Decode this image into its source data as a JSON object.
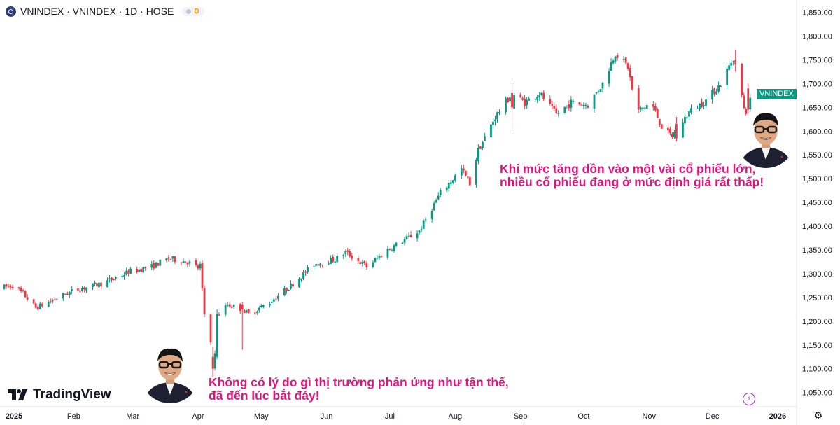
{
  "header": {
    "symbol_title": "VNINDEX · VNINDEX · 1D · HOSE",
    "badge": "D"
  },
  "price_tag": "VNINDEX",
  "brand": "TradingView",
  "annotations": {
    "bottom_lines": [
      "Không có lý do gì thị trường phản ứng như tận thế,",
      "đã đến lúc bắt đáy!"
    ],
    "top_lines": [
      "Khi mức tăng dồn vào một vài cổ phiếu lớn,",
      "nhiều cổ phiếu đang ở mức định giá rất thấp!"
    ]
  },
  "colors": {
    "up": "#089981",
    "down": "#f23645",
    "annotation": "#e0147c",
    "price_tag": "#089981"
  },
  "icons": {
    "flash": "lightning-icon",
    "settings": "gear-icon"
  },
  "chart_data": {
    "type": "candlestick",
    "y_ticks": [
      "1,850.00",
      "1,800.00",
      "1,750.00",
      "1,700.00",
      "1,650.00",
      "1,600.00",
      "1,550.00",
      "1,500.00",
      "1,450.00",
      "1,400.00",
      "1,350.00",
      "1,300.00",
      "1,250.00",
      "1,200.00",
      "1,150.00",
      "1,100.00",
      "1,050.00"
    ],
    "ylim": [
      1020,
      1870
    ],
    "x_labels": [
      {
        "label": "2025",
        "date": "2025-01-01",
        "bold": true
      },
      {
        "label": "Feb",
        "date": "2025-02-01"
      },
      {
        "label": "Mar",
        "date": "2025-03-01"
      },
      {
        "label": "Apr",
        "date": "2025-04-01"
      },
      {
        "label": "May",
        "date": "2025-05-01"
      },
      {
        "label": "Jun",
        "date": "2025-06-01"
      },
      {
        "label": "Jul",
        "date": "2025-07-01"
      },
      {
        "label": "Aug",
        "date": "2025-08-01"
      },
      {
        "label": "Sep",
        "date": "2025-09-01"
      },
      {
        "label": "Oct",
        "date": "2025-10-01"
      },
      {
        "label": "Nov",
        "date": "2025-11-01"
      },
      {
        "label": "Dec",
        "date": "2025-12-01"
      },
      {
        "label": "2026",
        "date": "2026-01-01",
        "bold": true
      }
    ],
    "xlim": [
      "2024-12-28",
      "2026-01-10"
    ],
    "anchors": [
      [
        "2024-12-28",
        1270
      ],
      [
        "2025-01-03",
        1275
      ],
      [
        "2025-01-08",
        1258
      ],
      [
        "2025-01-14",
        1228
      ],
      [
        "2025-01-20",
        1240
      ],
      [
        "2025-02-01",
        1265
      ],
      [
        "2025-02-15",
        1280
      ],
      [
        "2025-02-28",
        1305
      ],
      [
        "2025-03-10",
        1315
      ],
      [
        "2025-03-18",
        1332
      ],
      [
        "2025-03-27",
        1325
      ],
      [
        "2025-04-01",
        1312
      ],
      [
        "2025-04-02",
        1318
      ],
      [
        "2025-04-03",
        1265
      ],
      [
        "2025-04-04",
        1215
      ],
      [
        "2025-04-07",
        1160
      ],
      [
        "2025-04-08",
        1100
      ],
      [
        "2025-04-09",
        1130
      ],
      [
        "2025-04-10",
        1210
      ],
      [
        "2025-04-15",
        1235
      ],
      [
        "2025-04-22",
        1225
      ],
      [
        "2025-04-25",
        1215
      ],
      [
        "2025-05-05",
        1240
      ],
      [
        "2025-05-15",
        1275
      ],
      [
        "2025-05-26",
        1320
      ],
      [
        "2025-06-05",
        1330
      ],
      [
        "2025-06-10",
        1345
      ],
      [
        "2025-06-20",
        1315
      ],
      [
        "2025-06-30",
        1350
      ],
      [
        "2025-07-15",
        1390
      ],
      [
        "2025-07-25",
        1470
      ],
      [
        "2025-08-04",
        1520
      ],
      [
        "2025-08-08",
        1490
      ],
      [
        "2025-08-12",
        1560
      ],
      [
        "2025-08-20",
        1630
      ],
      [
        "2025-08-28",
        1680
      ],
      [
        "2025-09-03",
        1660
      ],
      [
        "2025-09-10",
        1680
      ],
      [
        "2025-09-18",
        1635
      ],
      [
        "2025-09-25",
        1660
      ],
      [
        "2025-10-03",
        1655
      ],
      [
        "2025-10-10",
        1700
      ],
      [
        "2025-10-16",
        1765
      ],
      [
        "2025-10-22",
        1735
      ],
      [
        "2025-10-26",
        1640
      ],
      [
        "2025-11-02",
        1660
      ],
      [
        "2025-11-08",
        1600
      ],
      [
        "2025-11-12",
        1590
      ],
      [
        "2025-11-20",
        1640
      ],
      [
        "2025-11-28",
        1665
      ],
      [
        "2025-12-05",
        1700
      ],
      [
        "2025-12-11",
        1755
      ],
      [
        "2025-12-13",
        1730
      ],
      [
        "2025-12-16",
        1645
      ],
      [
        "2025-12-18",
        1640
      ],
      [
        "2025-12-20",
        1690
      ]
    ],
    "candles": [
      [
        "2025-04-08",
        1125,
        1145,
        1082,
        1100
      ],
      [
        "2025-04-10",
        1125,
        1225,
        1120,
        1215
      ],
      [
        "2025-04-22",
        1235,
        1240,
        1140,
        1225
      ],
      [
        "2025-08-28",
        1680,
        1700,
        1600,
        1650
      ],
      [
        "2025-10-11",
        1740,
        1795,
        1730,
        1765
      ],
      [
        "2025-11-14",
        1615,
        1630,
        1578,
        1585
      ],
      [
        "2025-12-12",
        1750,
        1770,
        1725,
        1740
      ],
      [
        "2025-12-18",
        1690,
        1700,
        1630,
        1645
      ]
    ],
    "last_price_series_name": "VNINDEX"
  }
}
